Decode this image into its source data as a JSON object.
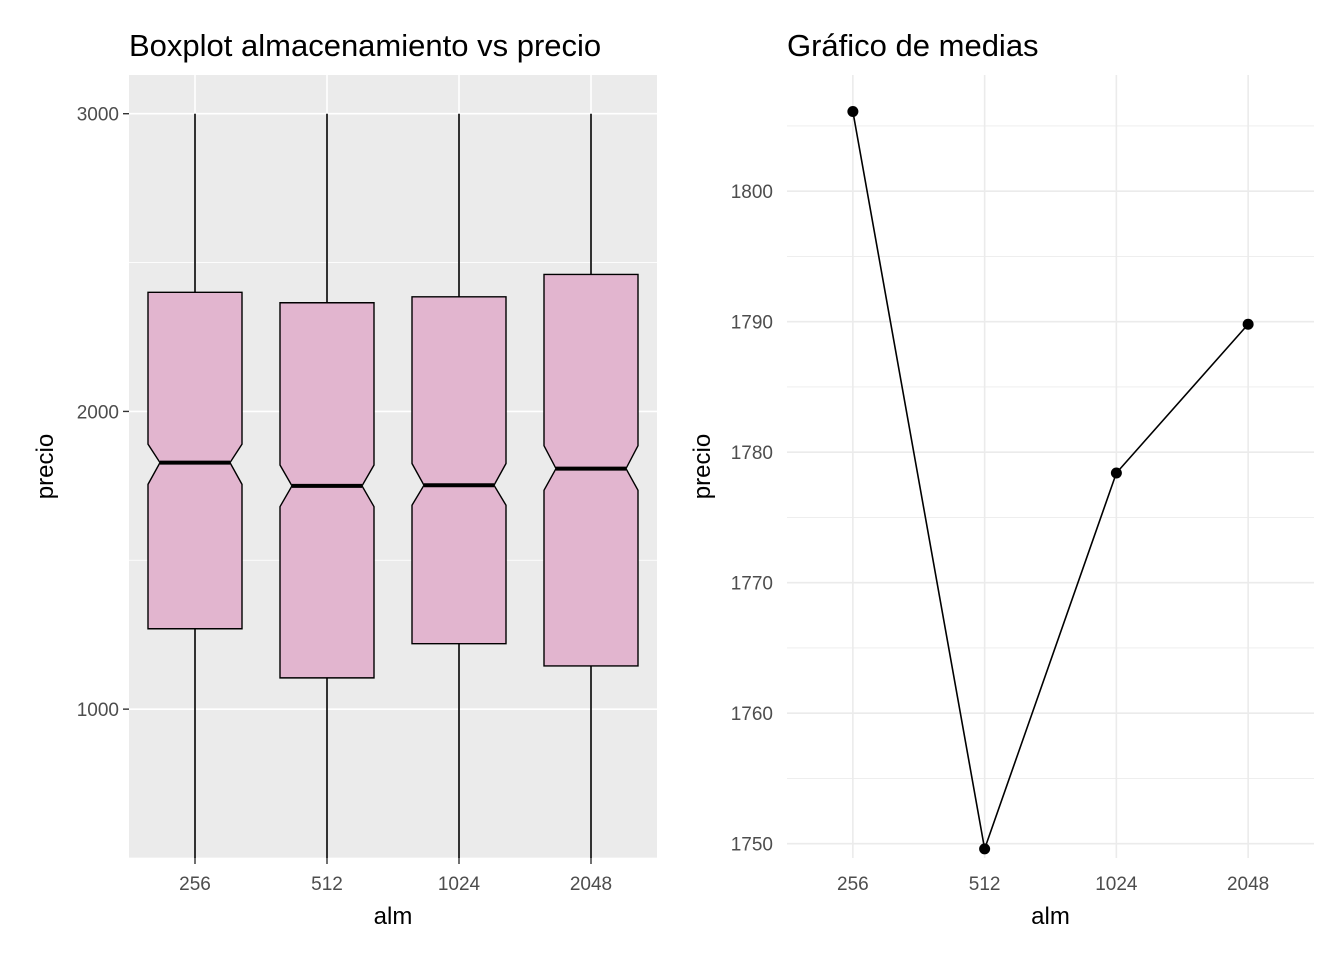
{
  "chart_data": [
    {
      "type": "boxplot",
      "title": "Boxplot almacenamiento vs precio",
      "xlabel": "alm",
      "ylabel": "precio",
      "categories": [
        "256",
        "512",
        "1024",
        "2048"
      ],
      "yticks": [
        "1000",
        "2000",
        "3000"
      ],
      "ylim": [
        500,
        3130
      ],
      "notched": true,
      "fill_color": "#e2b5cf",
      "panel_background": "#ebebeb",
      "grid": true,
      "boxes": [
        {
          "category": "256",
          "min": 500,
          "q1": 1270,
          "median": 1828,
          "q3": 2400,
          "max": 3000,
          "notch_low": 1755,
          "notch_high": 1890
        },
        {
          "category": "512",
          "min": 500,
          "q1": 1105,
          "median": 1750,
          "q3": 2365,
          "max": 3000,
          "notch_low": 1680,
          "notch_high": 1820
        },
        {
          "category": "1024",
          "min": 500,
          "q1": 1220,
          "median": 1752,
          "q3": 2385,
          "max": 3000,
          "notch_low": 1685,
          "notch_high": 1825
        },
        {
          "category": "2048",
          "min": 500,
          "q1": 1145,
          "median": 1808,
          "q3": 2460,
          "max": 3000,
          "notch_low": 1735,
          "notch_high": 1885
        }
      ]
    },
    {
      "type": "line",
      "title": "Gráfico de medias",
      "xlabel": "alm",
      "ylabel": "precio",
      "categories": [
        "256",
        "512",
        "1024",
        "2048"
      ],
      "values": [
        1806.1,
        1749.6,
        1778.4,
        1789.8
      ],
      "yticks": [
        "1750",
        "1760",
        "1770",
        "1780",
        "1790",
        "1800"
      ],
      "ylim": [
        1748.9,
        1808.9
      ],
      "markers": true,
      "panel_background": "#ffffff",
      "grid": true
    }
  ],
  "colors": {
    "box_fill": "#e2b5cf",
    "grid_major": "#ffffff",
    "panel": "#ebebeb",
    "light_grid": "#ebebeb",
    "line": "#000000"
  }
}
